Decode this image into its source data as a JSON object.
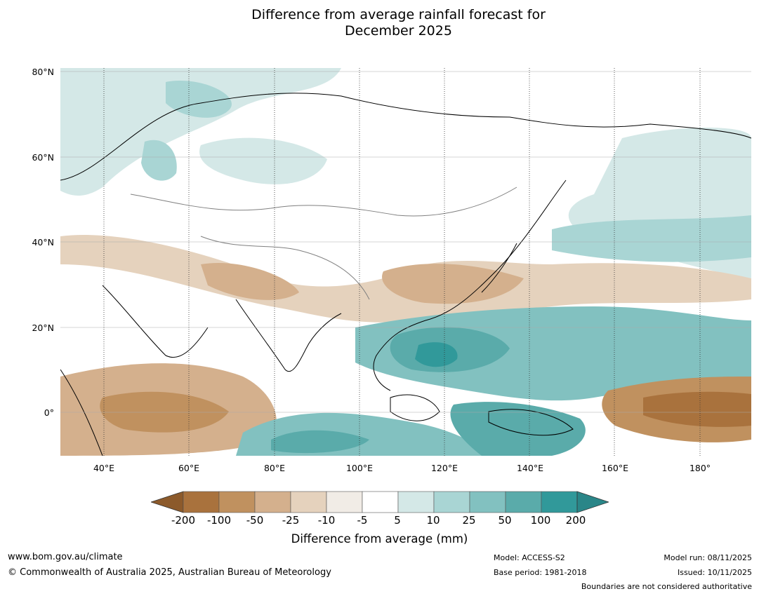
{
  "title_line1": "Difference from average rainfall forecast for",
  "title_line2": "December 2025",
  "lat_labels": [
    "80°N",
    "60°N",
    "40°N",
    "20°N",
    "0°"
  ],
  "lon_labels": [
    "40°E",
    "60°E",
    "80°E",
    "100°E",
    "120°E",
    "140°E",
    "160°E",
    "180°"
  ],
  "colorbar": {
    "ticks": [
      "-200",
      "-100",
      "-50",
      "-25",
      "-10",
      "-5",
      "5",
      "10",
      "25",
      "50",
      "100",
      "200"
    ],
    "colors": [
      "#a9723d",
      "#c0915f",
      "#d4b08d",
      "#e5d2bd",
      "#f1ece6",
      "#ffffff",
      "#d4e8e7",
      "#a9d5d4",
      "#82c1c0",
      "#5aabaa",
      "#31999a",
      "#2a8688"
    ],
    "title": "Difference from average (mm)"
  },
  "footer": {
    "website": "www.bom.gov.au/climate",
    "copyright": "© Commonwealth of Australia 2025, Australian Bureau of Meteorology",
    "model": "Model: ACCESS-S2",
    "base_period": "Base period: 1981-2018",
    "model_run": "Model run: 08/11/2025",
    "issued": "Issued: 10/11/2025",
    "disclaimer": "Boundaries are not considered authoritative"
  }
}
